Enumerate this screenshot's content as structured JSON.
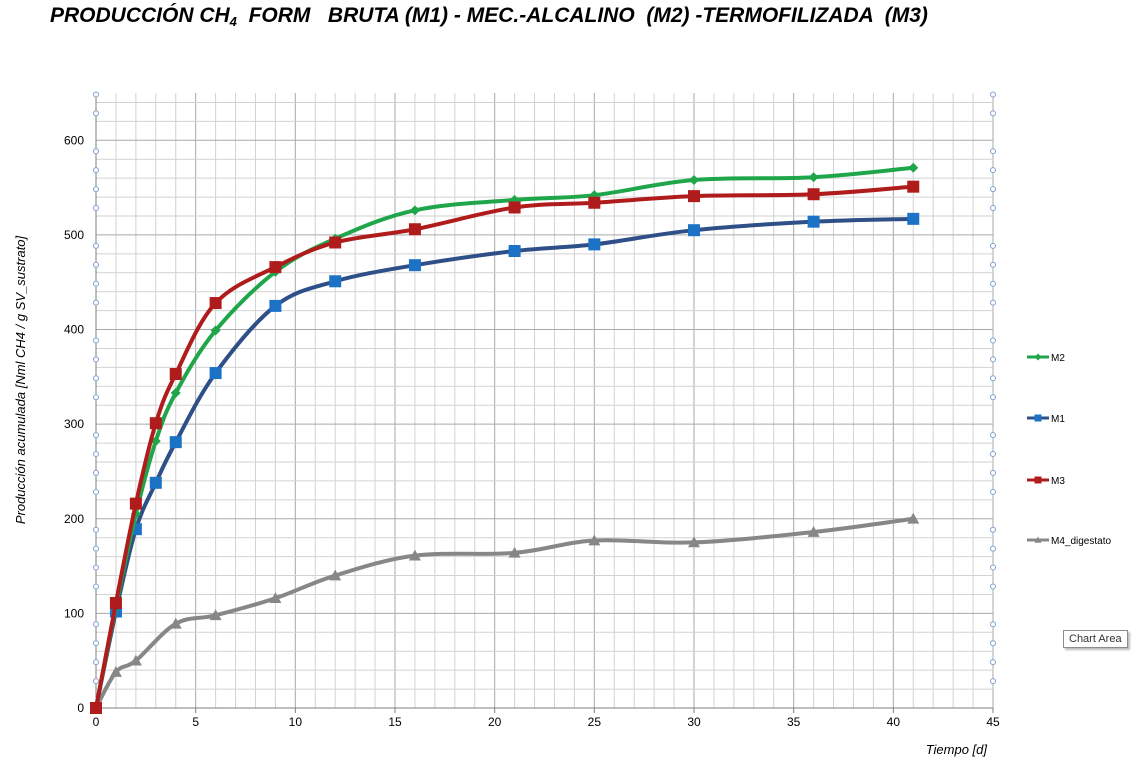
{
  "title": {
    "prefix": "PRODUCCIÓN CH",
    "subscript": "4",
    "suffix": "  FORM   BRUTA (M1) - MEC.-ALCALINO  (M2) -TERMOFILIZADA  (M3)"
  },
  "tooltip": "Chart Area",
  "chart_data": {
    "type": "line",
    "title": "PRODUCCIÓN CH4 FORM BRUTA (M1) - MEC.-ALCALINO (M2) -TERMOFILIZADA (M3)",
    "xlabel": "Tiempo [d]",
    "ylabel": "Producción acumulada  [Nml  CH4 /  g SV_sustrato]",
    "xlim": [
      0,
      45
    ],
    "ylim": [
      0,
      650
    ],
    "xticks": [
      0,
      5,
      10,
      15,
      20,
      25,
      30,
      35,
      40,
      45
    ],
    "yticks": [
      0,
      100,
      200,
      300,
      400,
      500,
      600
    ],
    "grid": true,
    "legend_position": "right",
    "series": [
      {
        "name": "M2",
        "color": "#1fa64a",
        "marker": "diamond",
        "x": [
          0,
          1,
          2,
          3,
          4,
          6,
          9,
          12,
          16,
          21,
          25,
          30,
          36,
          41
        ],
        "y": [
          0,
          108,
          205,
          282,
          333,
          399,
          461,
          496,
          526,
          537,
          542,
          558,
          561,
          571
        ]
      },
      {
        "name": "M1",
        "color": "#2e4f87",
        "marker": "square",
        "marker_color": "#1c72c4",
        "x": [
          0,
          1,
          2,
          3,
          4,
          6,
          9,
          12,
          16,
          21,
          25,
          30,
          36,
          41
        ],
        "y": [
          0,
          102,
          189,
          238,
          281,
          354,
          425,
          451,
          468,
          483,
          490,
          505,
          514,
          517
        ]
      },
      {
        "name": "M3",
        "color": "#b01c1c",
        "marker": "square",
        "x": [
          0,
          1,
          2,
          3,
          4,
          6,
          9,
          12,
          16,
          21,
          25,
          30,
          36,
          41
        ],
        "y": [
          0,
          111,
          216,
          301,
          353,
          428,
          466,
          492,
          506,
          529,
          534,
          541,
          543,
          551
        ]
      },
      {
        "name": "M4_digestato",
        "color": "#878787",
        "marker": "triangle",
        "x": [
          0,
          1,
          2,
          4,
          6,
          9,
          12,
          16,
          21,
          25,
          30,
          36,
          41
        ],
        "y": [
          0,
          38,
          50,
          89,
          98,
          116,
          140,
          161,
          164,
          177,
          175,
          186,
          200
        ]
      }
    ]
  }
}
